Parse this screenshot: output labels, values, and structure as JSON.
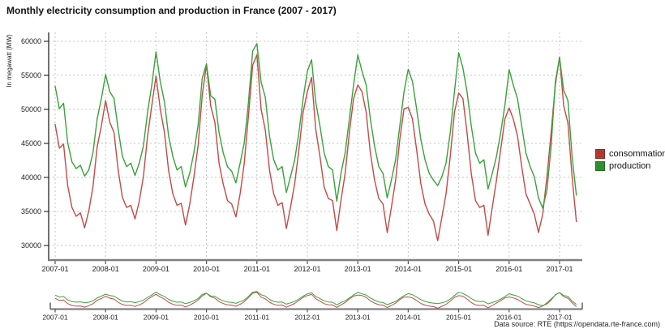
{
  "title": "Monthly electricity consumption and production in France (2007 - 2017)",
  "footer": {
    "datasource": "Data source: RTE (https://opendata.rte-france.com)"
  },
  "legend": {
    "items": [
      {
        "label": "consommation",
        "color": "#b03a32"
      },
      {
        "label": "production",
        "color": "#2f8f2f"
      }
    ]
  },
  "chart_data": {
    "type": "line",
    "title": "Monthly electricity consumption and production in France (2007 - 2017)",
    "xlabel": "",
    "ylabel": "In megawatt (MW)",
    "x_start": "2007-01",
    "x_interval": "month",
    "x_tick_labels": [
      "2007-01",
      "2008-01",
      "2009-01",
      "2010-01",
      "2011-01",
      "2012-01",
      "2013-01",
      "2014-01",
      "2015-01",
      "2016-01",
      "2017-01"
    ],
    "y_ticks": [
      30000,
      35000,
      40000,
      45000,
      50000,
      55000,
      60000
    ],
    "ylim": [
      30000,
      60000
    ],
    "grid": "dashed",
    "legend_position": "right",
    "navigator": true,
    "series": [
      {
        "name": "consommation",
        "color": "#c24a46",
        "values": [
          47800,
          44300,
          44900,
          38800,
          35600,
          34300,
          34800,
          32600,
          35100,
          38600,
          44500,
          47600,
          51300,
          48100,
          46600,
          41100,
          37100,
          35600,
          35900,
          33900,
          36500,
          40100,
          46100,
          50600,
          54900,
          50100,
          46600,
          41000,
          37600,
          35900,
          36200,
          33000,
          36000,
          40000,
          44600,
          52100,
          56600,
          50500,
          48100,
          42100,
          39000,
          36600,
          36100,
          34200,
          37600,
          42100,
          49100,
          56500,
          58000,
          50000,
          47000,
          41100,
          37600,
          35900,
          36300,
          32500,
          35600,
          39100,
          44100,
          49600,
          52600,
          54700,
          47100,
          43100,
          38600,
          36900,
          36600,
          32200,
          36600,
          40600,
          46600,
          51600,
          53600,
          52600,
          49600,
          43600,
          39600,
          36900,
          36100,
          31900,
          35600,
          39600,
          45600,
          50100,
          50300,
          48600,
          44100,
          39100,
          36100,
          34600,
          33600,
          30700,
          34100,
          37600,
          43100,
          49600,
          52400,
          51600,
          46600,
          40600,
          36600,
          35600,
          35900,
          31500,
          35600,
          39600,
          44100,
          48600,
          50200,
          48600,
          46100,
          41600,
          37600,
          36100,
          34600,
          31900,
          34600,
          40100,
          46600,
          53600,
          57700,
          50500,
          48000,
          40000,
          33500
        ]
      },
      {
        "name": "production",
        "color": "#3aa23a",
        "values": [
          53400,
          50100,
          50900,
          45100,
          42300,
          41300,
          41800,
          40200,
          41100,
          43600,
          48600,
          51600,
          55100,
          52600,
          51600,
          47100,
          43100,
          41600,
          42100,
          40300,
          42100,
          44600,
          49600,
          53600,
          58450,
          54100,
          51100,
          46100,
          43100,
          41100,
          41600,
          38600,
          40600,
          43600,
          47600,
          54600,
          56700,
          52000,
          51500,
          46600,
          43600,
          41600,
          40900,
          39200,
          42100,
          45100,
          51100,
          58600,
          59650,
          54000,
          51800,
          46100,
          42600,
          41100,
          41600,
          37800,
          40100,
          42600,
          46600,
          51600,
          55600,
          57300,
          51100,
          47600,
          43600,
          41600,
          41100,
          36500,
          40600,
          43600,
          48600,
          53600,
          58000,
          55600,
          53600,
          48600,
          44600,
          41600,
          40600,
          37000,
          39600,
          42600,
          47600,
          52600,
          55900,
          54100,
          50100,
          45600,
          42600,
          40600,
          39600,
          38800,
          40100,
          42100,
          46600,
          52600,
          58350,
          56100,
          52600,
          47600,
          43600,
          42100,
          42600,
          38300,
          40600,
          43100,
          46600,
          50600,
          55850,
          53600,
          51600,
          47600,
          43600,
          41600,
          40100,
          37000,
          35500,
          38100,
          44600,
          54100,
          57600,
          52800,
          51300,
          43000,
          37400
        ]
      }
    ],
    "style": {
      "grid_color": "#c4c4c4",
      "axis_color": "#808080",
      "yaxis_color": "#333333",
      "text_color": "#222222"
    }
  }
}
